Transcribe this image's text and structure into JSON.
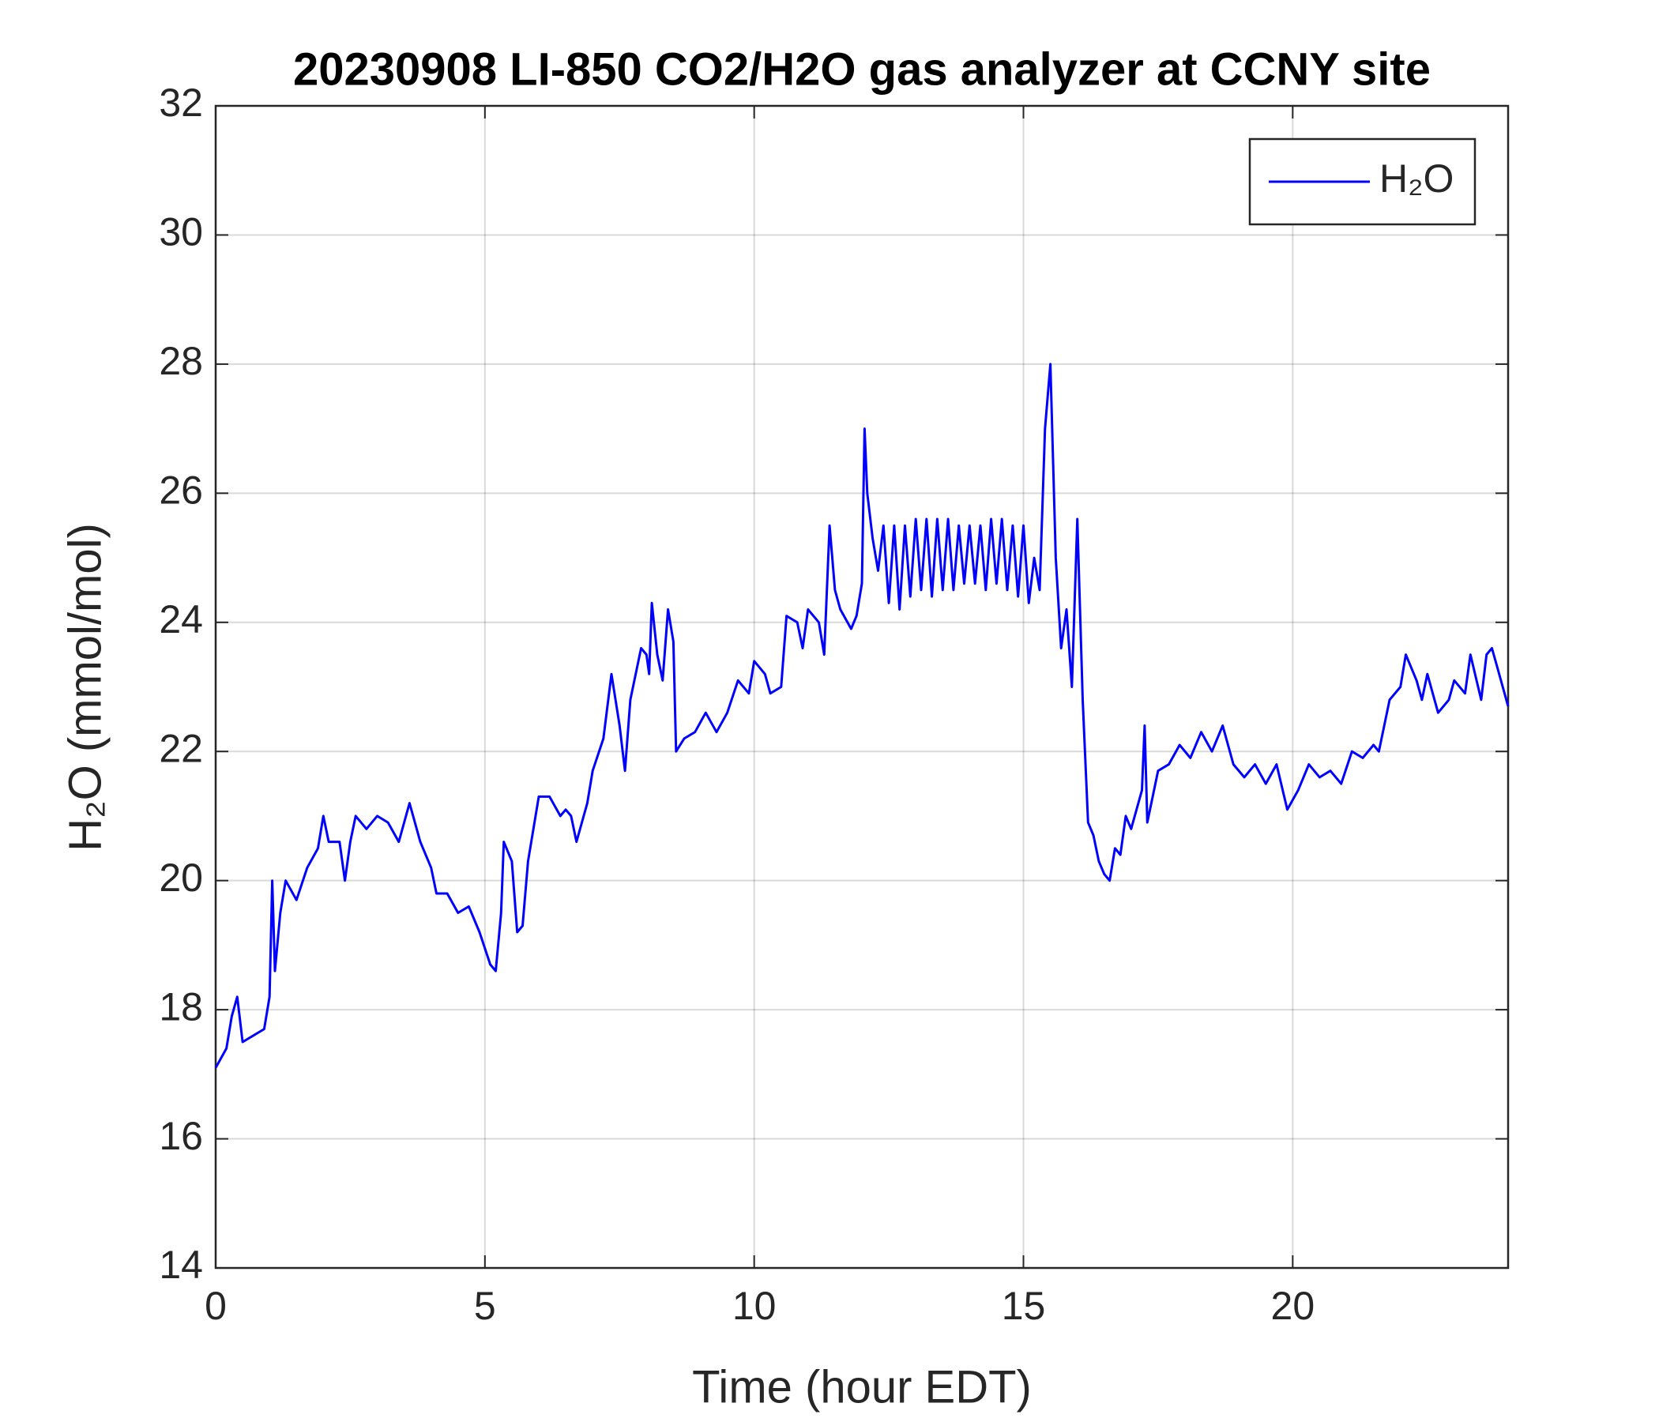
{
  "chart_data": {
    "type": "line",
    "title": "20230908 LI-850 CO2/H2O gas analyzer at CCNY site",
    "x_label": "Time (hour EDT)",
    "y_label": "H₂O (mmol/mol)",
    "xlim": [
      0,
      24
    ],
    "xticks": [
      0,
      5,
      10,
      15,
      20
    ],
    "ylim": [
      14,
      32
    ],
    "yticks": [
      14,
      16,
      18,
      20,
      22,
      24,
      26,
      28,
      30,
      32
    ],
    "grid": true,
    "legend": "upper right",
    "x": [
      0,
      0.2,
      0.3,
      0.4,
      0.5,
      0.7,
      0.9,
      1.0,
      1.05,
      1.1,
      1.2,
      1.3,
      1.5,
      1.7,
      1.9,
      2.0,
      2.1,
      2.3,
      2.4,
      2.5,
      2.6,
      2.8,
      3.0,
      3.2,
      3.4,
      3.6,
      3.8,
      4.0,
      4.1,
      4.3,
      4.5,
      4.7,
      4.9,
      5.1,
      5.2,
      5.3,
      5.35,
      5.5,
      5.6,
      5.7,
      5.8,
      6.0,
      6.2,
      6.4,
      6.5,
      6.6,
      6.7,
      6.9,
      7.0,
      7.2,
      7.35,
      7.5,
      7.6,
      7.7,
      7.9,
      8.0,
      8.05,
      8.1,
      8.2,
      8.3,
      8.4,
      8.5,
      8.55,
      8.7,
      8.9,
      9.1,
      9.3,
      9.5,
      9.7,
      9.9,
      10.0,
      10.2,
      10.3,
      10.5,
      10.6,
      10.8,
      10.9,
      11.0,
      11.2,
      11.3,
      11.4,
      11.5,
      11.6,
      11.8,
      11.9,
      12.0,
      12.05,
      12.1,
      12.2,
      12.3,
      12.4,
      12.5,
      12.6,
      12.7,
      12.8,
      12.9,
      13.0,
      13.1,
      13.2,
      13.3,
      13.4,
      13.5,
      13.6,
      13.7,
      13.8,
      13.9,
      14.0,
      14.1,
      14.2,
      14.3,
      14.4,
      14.5,
      14.6,
      14.7,
      14.8,
      14.9,
      15.0,
      15.1,
      15.2,
      15.3,
      15.4,
      15.5,
      15.6,
      15.7,
      15.8,
      15.9,
      16.0,
      16.1,
      16.2,
      16.3,
      16.4,
      16.5,
      16.6,
      16.7,
      16.8,
      16.9,
      17.0,
      17.2,
      17.25,
      17.3,
      17.5,
      17.7,
      17.9,
      18.1,
      18.3,
      18.5,
      18.7,
      18.9,
      19.1,
      19.3,
      19.5,
      19.7,
      19.9,
      20.1,
      20.3,
      20.5,
      20.7,
      20.9,
      21.1,
      21.3,
      21.5,
      21.6,
      21.7,
      21.8,
      22.0,
      22.1,
      22.3,
      22.4,
      22.5,
      22.7,
      22.9,
      23.0,
      23.2,
      23.3,
      23.5,
      23.6,
      23.7,
      23.8,
      23.9,
      24.0
    ],
    "series": [
      {
        "name": "H₂O",
        "color": "#0000ff",
        "values": [
          17.1,
          17.4,
          17.9,
          18.2,
          17.5,
          17.6,
          17.7,
          18.2,
          20.0,
          18.6,
          19.5,
          20.0,
          19.7,
          20.2,
          20.5,
          21.0,
          20.6,
          20.6,
          20.0,
          20.6,
          21.0,
          20.8,
          21.0,
          20.9,
          20.6,
          21.2,
          20.6,
          20.2,
          19.8,
          19.8,
          19.5,
          19.6,
          19.2,
          18.7,
          18.6,
          19.5,
          20.6,
          20.3,
          19.2,
          19.3,
          20.3,
          21.3,
          21.3,
          21.0,
          21.1,
          21.0,
          20.6,
          21.2,
          21.7,
          22.2,
          23.2,
          22.4,
          21.7,
          22.8,
          23.6,
          23.5,
          23.2,
          24.3,
          23.5,
          23.1,
          24.2,
          23.7,
          22.0,
          22.2,
          22.3,
          22.6,
          22.3,
          22.6,
          23.1,
          22.9,
          23.4,
          23.2,
          22.9,
          23.0,
          24.1,
          24.0,
          23.6,
          24.2,
          24.0,
          23.5,
          25.5,
          24.5,
          24.2,
          23.9,
          24.1,
          24.6,
          27.0,
          26.0,
          25.3,
          24.8,
          25.5,
          24.3,
          25.5,
          24.2,
          25.5,
          24.4,
          25.6,
          24.5,
          25.6,
          24.4,
          25.6,
          24.5,
          25.6,
          24.5,
          25.5,
          24.6,
          25.5,
          24.6,
          25.5,
          24.5,
          25.6,
          24.6,
          25.6,
          24.5,
          25.5,
          24.4,
          25.5,
          24.3,
          25.0,
          24.5,
          27.0,
          28.0,
          25.0,
          23.6,
          24.2,
          23.0,
          25.6,
          22.8,
          20.9,
          20.7,
          20.3,
          20.1,
          20.0,
          20.5,
          20.4,
          21.0,
          20.8,
          21.4,
          22.4,
          20.9,
          21.7,
          21.8,
          22.1,
          21.9,
          22.3,
          22.0,
          22.4,
          21.8,
          21.6,
          21.8,
          21.5,
          21.8,
          21.1,
          21.4,
          21.8,
          21.6,
          21.7,
          21.5,
          22.0,
          21.9,
          22.1,
          22.0,
          22.4,
          22.8,
          23.0,
          23.5,
          23.1,
          22.8,
          23.2,
          22.6,
          22.8,
          23.1,
          22.9,
          23.5,
          22.8,
          23.5,
          23.6,
          23.3,
          23.0,
          22.7
        ]
      }
    ]
  }
}
